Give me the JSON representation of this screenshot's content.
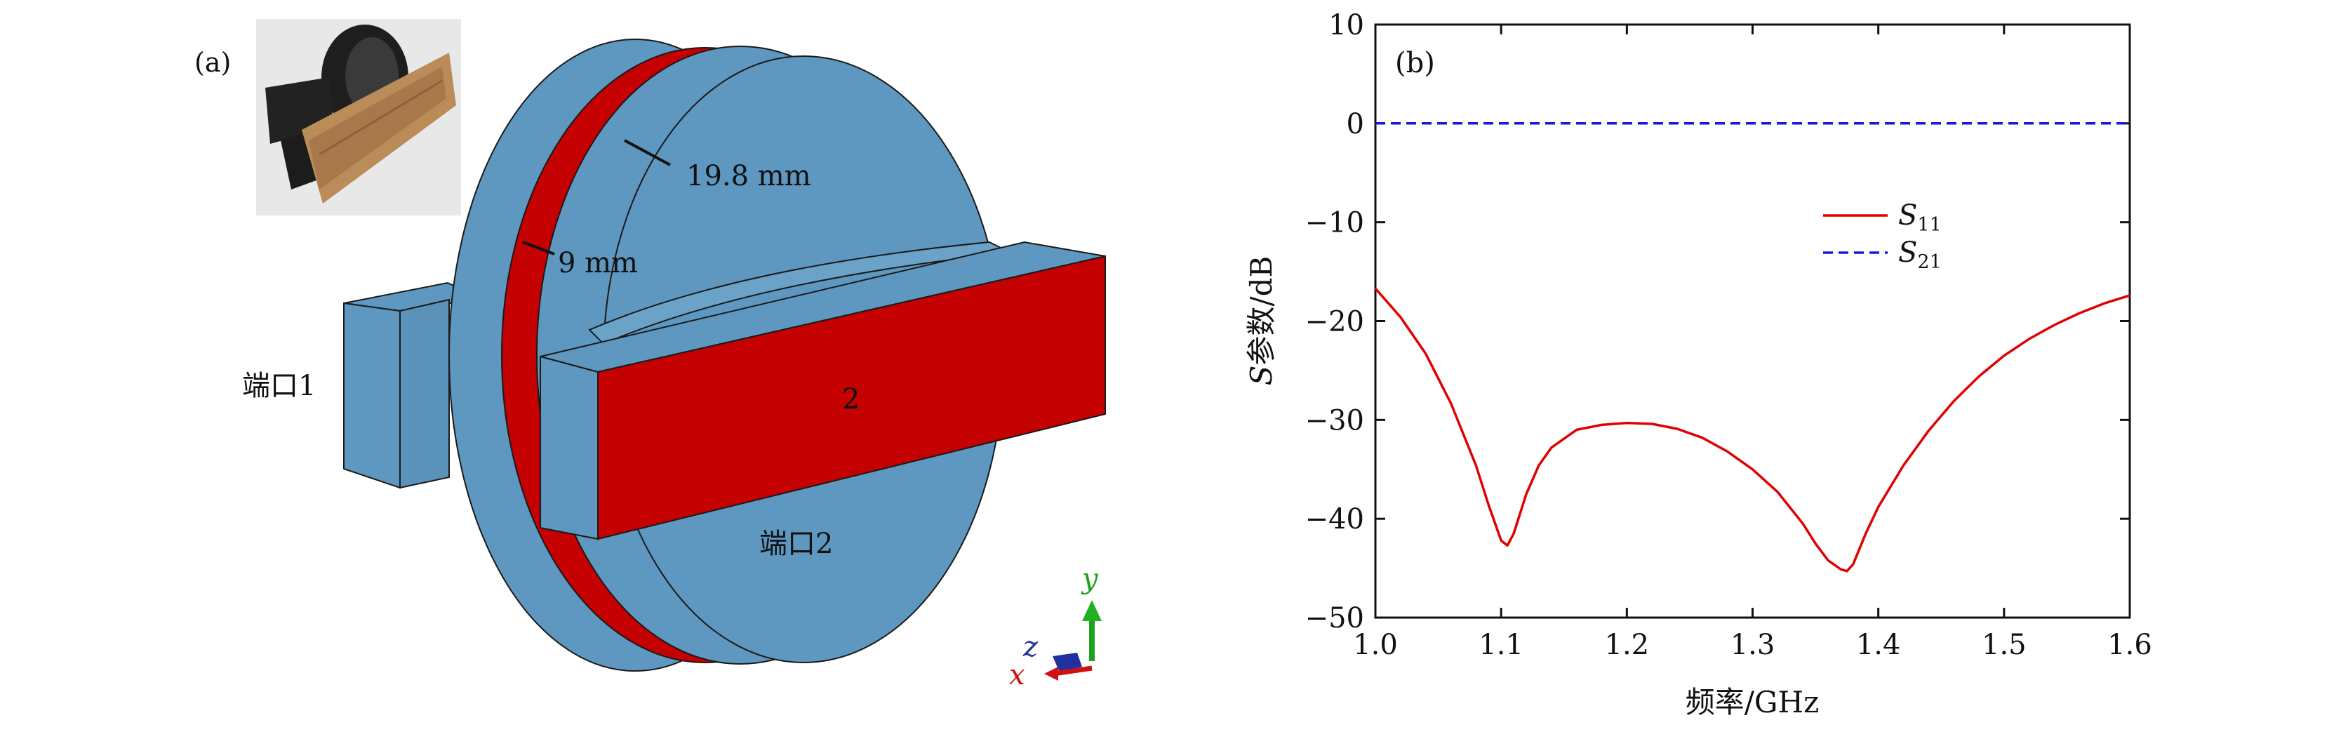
{
  "panel_a": {
    "label": "(a)",
    "dim_outer": "19.8 mm",
    "dim_inner": "9 mm",
    "port1": "端口1",
    "port2": "端口2",
    "port2_face_number": "2",
    "axes": {
      "x": "x",
      "y": "y",
      "z": "z"
    },
    "colors": {
      "metal_blue": "#5e97bf",
      "dielectric_red": "#c40000",
      "edge": "#1a1a1a"
    }
  },
  "panel_b": {
    "label": "(b)"
  },
  "chart_data": {
    "type": "line",
    "title": "",
    "xlabel": "频率/GHz",
    "ylabel_italic": "S",
    "ylabel_rest": "参数/dB",
    "xlim": [
      1.0,
      1.6
    ],
    "ylim": [
      -50,
      10
    ],
    "xticks": [
      1.0,
      1.1,
      1.2,
      1.3,
      1.4,
      1.5,
      1.6
    ],
    "xtick_labels": [
      "1.0",
      "1.1",
      "1.2",
      "1.3",
      "1.4",
      "1.5",
      "1.6"
    ],
    "yticks": [
      10,
      0,
      -10,
      -20,
      -30,
      -40,
      -50
    ],
    "ytick_labels": [
      "10",
      "0",
      "−10",
      "−20",
      "−30",
      "−40",
      "−50"
    ],
    "grid": false,
    "legend_position": "center-right",
    "series": [
      {
        "name": "S11",
        "name_main": "S",
        "name_sub": "11",
        "color": "#e00000",
        "style": "solid",
        "x": [
          1.0,
          1.02,
          1.04,
          1.06,
          1.08,
          1.09,
          1.1,
          1.105,
          1.11,
          1.12,
          1.13,
          1.14,
          1.16,
          1.18,
          1.2,
          1.22,
          1.24,
          1.26,
          1.28,
          1.3,
          1.32,
          1.34,
          1.35,
          1.36,
          1.37,
          1.375,
          1.38,
          1.39,
          1.4,
          1.42,
          1.44,
          1.46,
          1.48,
          1.5,
          1.52,
          1.54,
          1.56,
          1.58,
          1.6
        ],
        "y": [
          -16.7,
          -19.6,
          -23.3,
          -28.3,
          -34.6,
          -38.6,
          -42.2,
          -42.7,
          -41.5,
          -37.5,
          -34.6,
          -32.8,
          -31.0,
          -30.5,
          -30.3,
          -30.4,
          -30.9,
          -31.8,
          -33.2,
          -35.0,
          -37.3,
          -40.5,
          -42.5,
          -44.2,
          -45.1,
          -45.3,
          -44.6,
          -41.5,
          -38.8,
          -34.6,
          -31.1,
          -28.1,
          -25.6,
          -23.5,
          -21.8,
          -20.4,
          -19.2,
          -18.2,
          -17.4
        ]
      },
      {
        "name": "S21",
        "name_main": "S",
        "name_sub": "21",
        "color": "#1a1adc",
        "style": "dashed",
        "x": [
          1.0,
          1.6
        ],
        "y": [
          0,
          0
        ]
      }
    ]
  }
}
